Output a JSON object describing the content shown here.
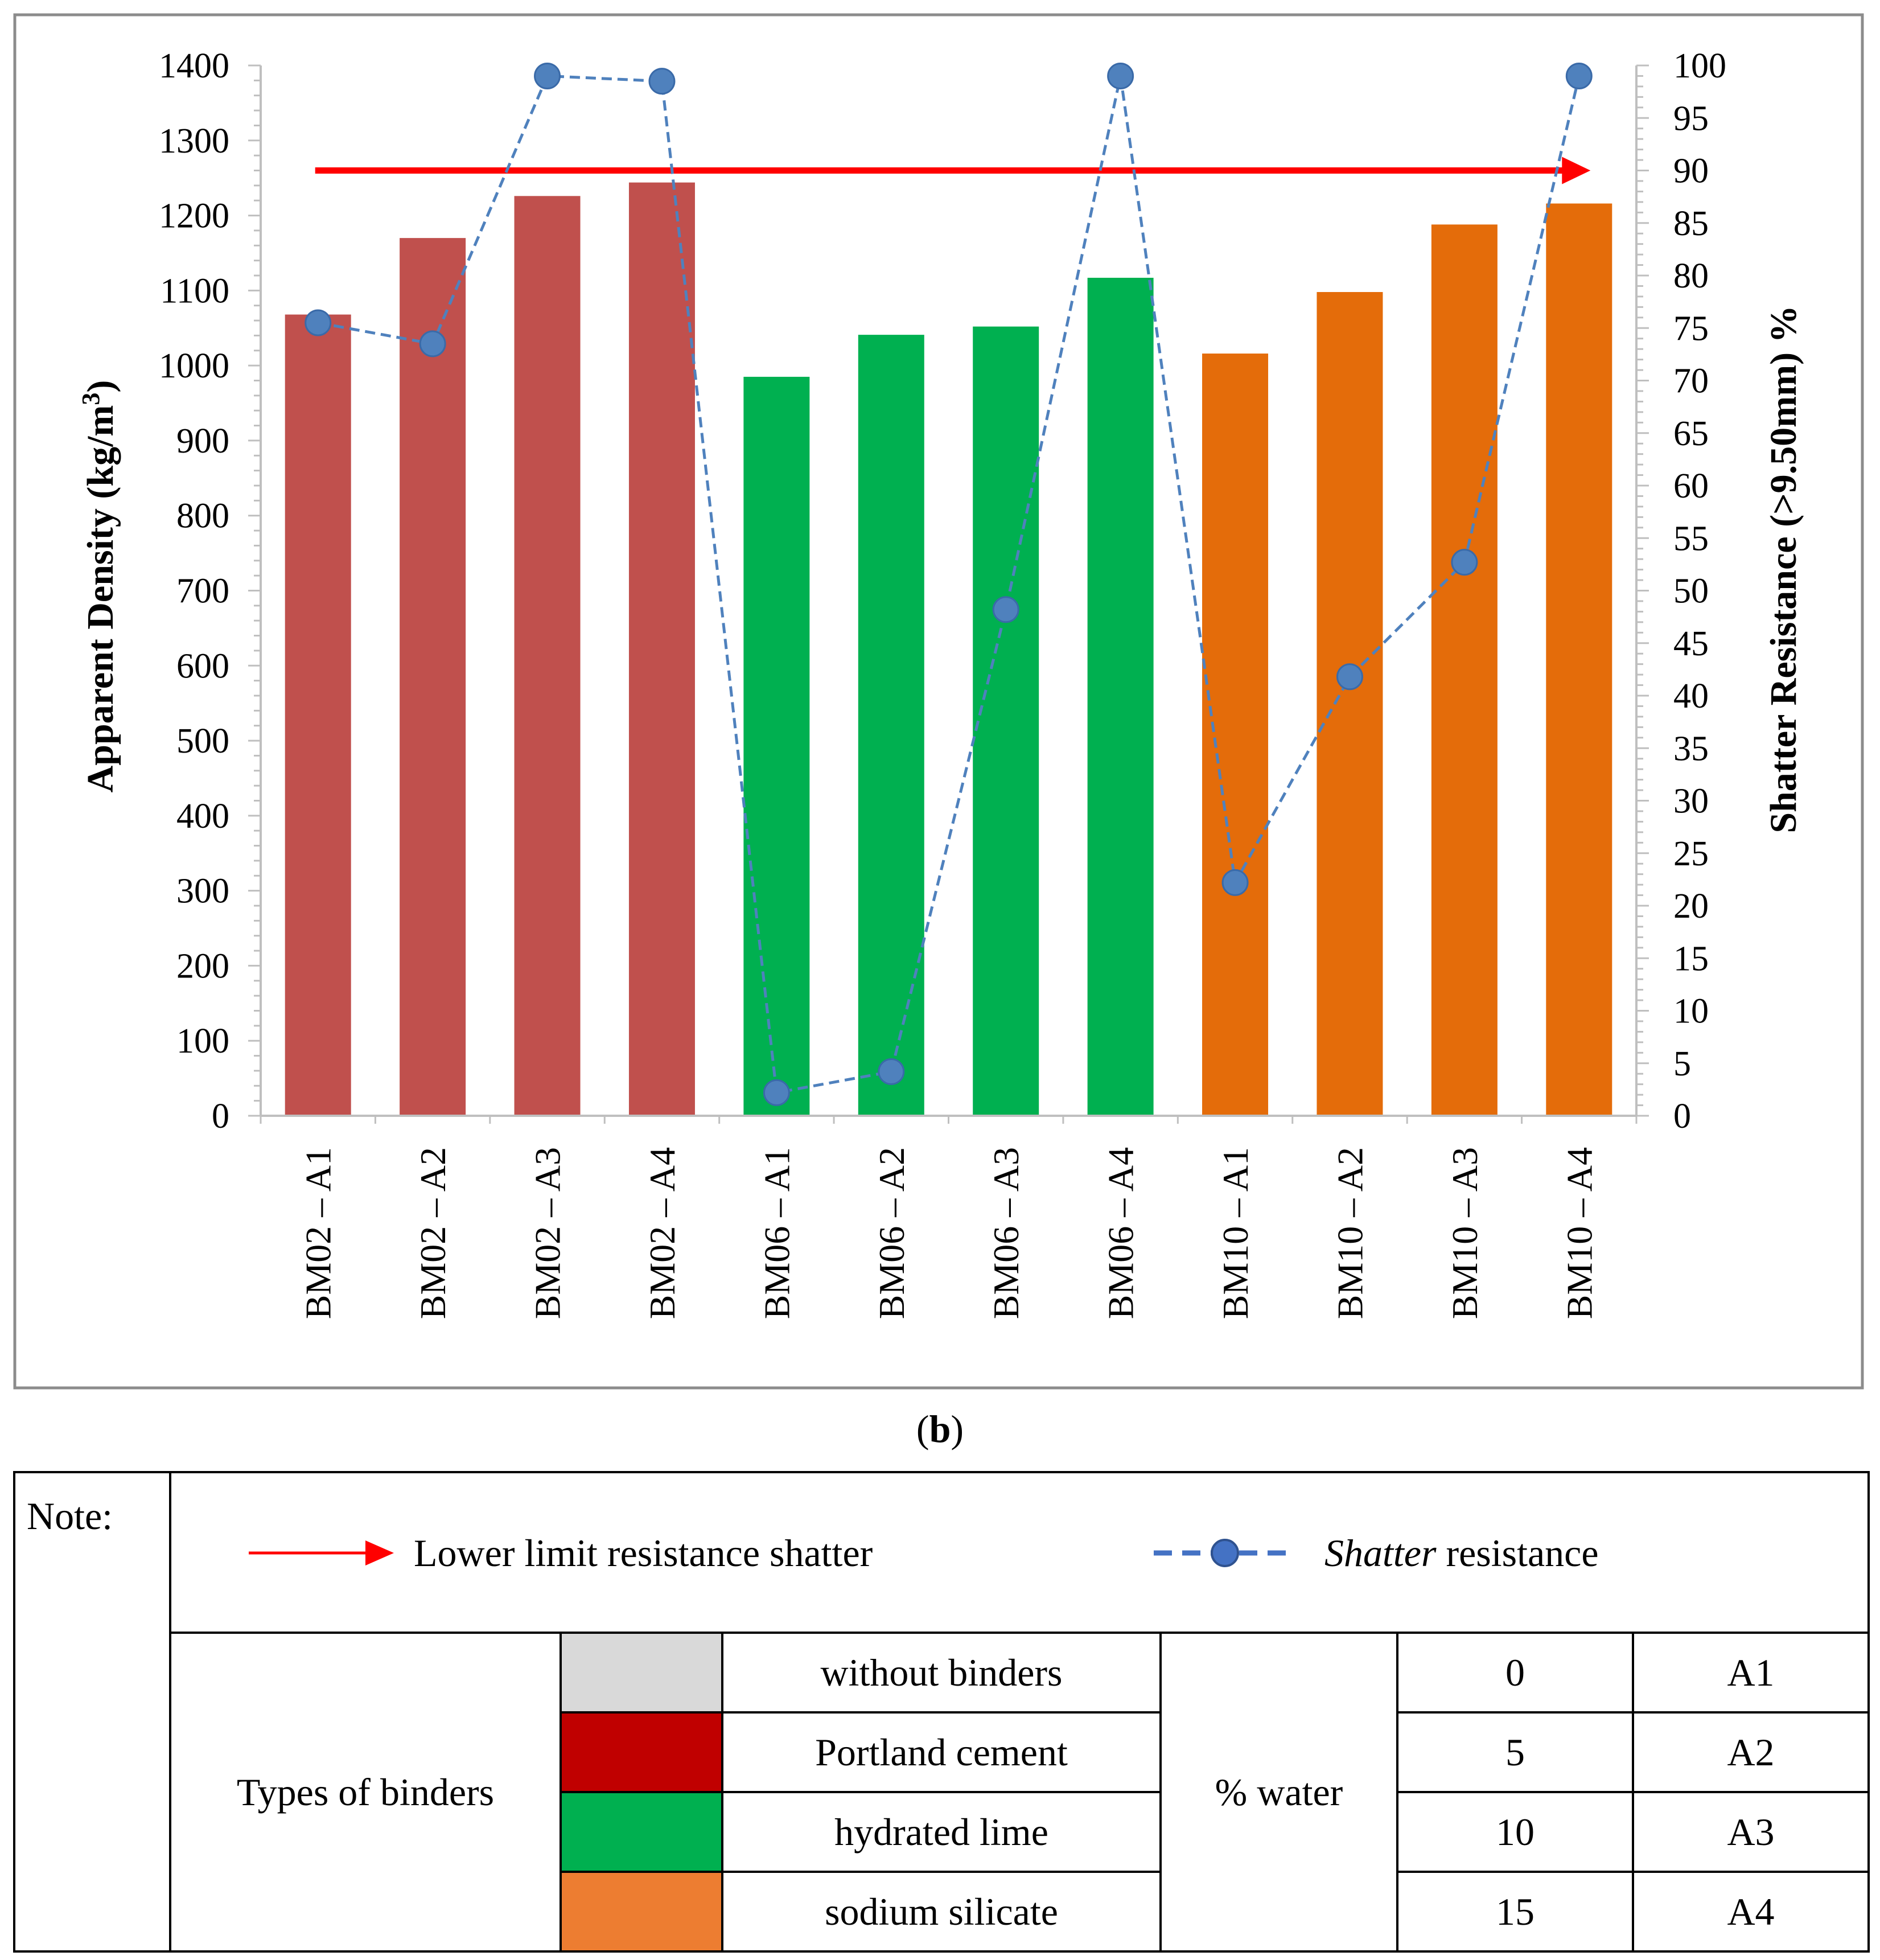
{
  "chart_data": {
    "type": "bar+line",
    "categories": [
      "BM02 – A1",
      "BM02 – A2",
      "BM02 – A3",
      "BM02 – A4",
      "BM06 – A1",
      "BM06 – A2",
      "BM06 – A3",
      "BM06 – A4",
      "BM10 – A1",
      "BM10 – A2",
      "BM10 – A3",
      "BM10 – A4"
    ],
    "bar_series": {
      "name": "Apparent Density",
      "values": [
        1068,
        1170,
        1226,
        1244,
        985,
        1041,
        1052,
        1117,
        1016,
        1098,
        1188,
        1216
      ],
      "colors": [
        "#c0504d",
        "#c0504d",
        "#c0504d",
        "#c0504d",
        "#00b050",
        "#00b050",
        "#00b050",
        "#00b050",
        "#e46c0a",
        "#e46c0a",
        "#e46c0a",
        "#e46c0a"
      ]
    },
    "line_series": {
      "name": "Shatter resistance",
      "values": [
        75.5,
        73.5,
        99,
        98.5,
        2.2,
        4.2,
        48.2,
        99,
        22.2,
        41.8,
        52.7,
        99
      ],
      "color": "#4f81bd"
    },
    "reference_line": {
      "name": "Lower limit resistance shatter",
      "value": 90,
      "color": "#ff0000"
    },
    "y_left": {
      "label_prefix": "Apparent Density (kg/m",
      "label_sup": "3",
      "label_suffix": ")",
      "min": 0,
      "max": 1400,
      "step": 100,
      "ticks": [
        "0",
        "100",
        "200",
        "300",
        "400",
        "500",
        "600",
        "700",
        "800",
        "900",
        "1000",
        "1100",
        "1200",
        "1300",
        "1400"
      ]
    },
    "y_right": {
      "label": "Shatter Resistance (>9.50mm) %",
      "min": 0,
      "max": 100,
      "step": 5,
      "ticks": [
        "0",
        "5",
        "10",
        "15",
        "20",
        "25",
        "30",
        "35",
        "40",
        "45",
        "50",
        "55",
        "60",
        "65",
        "70",
        "75",
        "80",
        "85",
        "90",
        "95",
        "100"
      ]
    },
    "caption_paren_open": "(",
    "caption_letter": "b",
    "caption_paren_close": ")"
  },
  "note": {
    "title": "Note:",
    "legend_limit": "Lower limit resistance shatter",
    "legend_shatter_italic": "Shatter",
    "legend_shatter_rest": " resistance",
    "binders_label": "Types of binders",
    "binders": [
      {
        "name": "without binders",
        "color": "#d9d9d9"
      },
      {
        "name": "Portland cement",
        "color": "#c00000"
      },
      {
        "name": "hydrated lime",
        "color": "#00b050"
      },
      {
        "name": "sodium silicate",
        "color": "#ed7d31"
      }
    ],
    "water_label": "% water",
    "water": [
      {
        "pct": "0",
        "code": "A1"
      },
      {
        "pct": "5",
        "code": "A2"
      },
      {
        "pct": "10",
        "code": "A3"
      },
      {
        "pct": "15",
        "code": "A4"
      }
    ]
  }
}
